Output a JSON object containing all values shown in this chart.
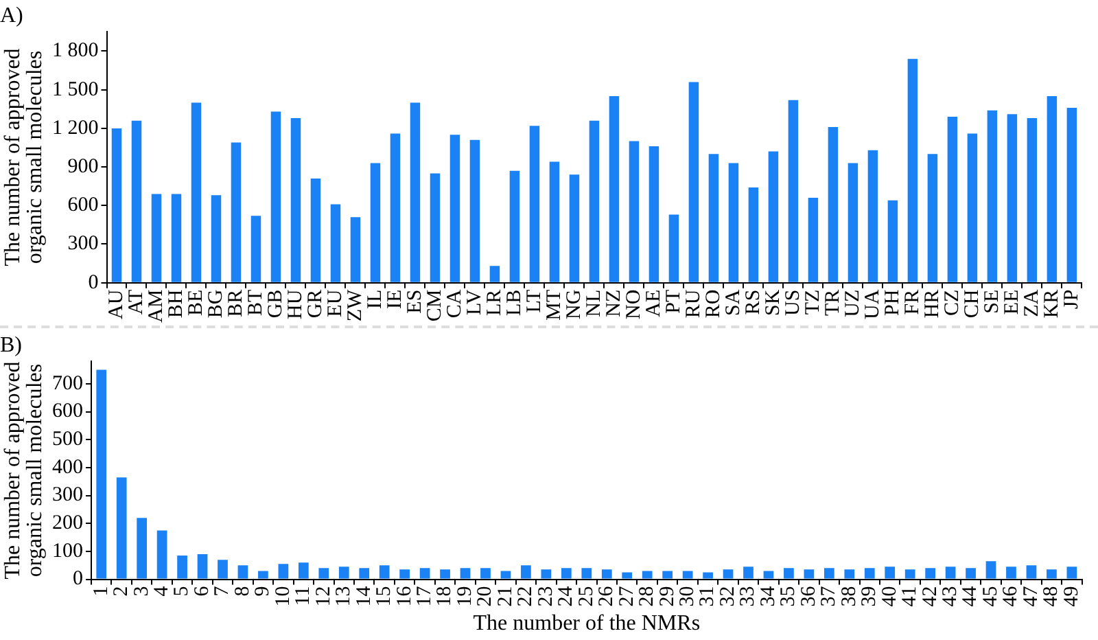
{
  "chart_data": [
    {
      "type": "bar",
      "title": "A)",
      "ylabel": "The number of approved organic small molecules",
      "categories": [
        "AU",
        "AT",
        "AM",
        "BH",
        "BE",
        "BG",
        "BR",
        "BT",
        "GB",
        "HU",
        "GR",
        "EU",
        "ZW",
        "IL",
        "IE",
        "ES",
        "CM",
        "CA",
        "LV",
        "LR",
        "LB",
        "LT",
        "MT",
        "NG",
        "NL",
        "NZ",
        "NO",
        "AE",
        "PT",
        "RU",
        "RO",
        "SA",
        "RS",
        "SK",
        "US",
        "TZ",
        "TR",
        "UZ",
        "UA",
        "PH",
        "FR",
        "HR",
        "CZ",
        "CH",
        "SE",
        "EE",
        "ZA",
        "KR",
        "JP"
      ],
      "values": [
        1200,
        1260,
        690,
        690,
        1400,
        680,
        1090,
        520,
        1330,
        1280,
        810,
        610,
        510,
        930,
        1160,
        1400,
        850,
        1150,
        1110,
        130,
        870,
        1220,
        940,
        840,
        1260,
        1450,
        1100,
        1060,
        530,
        1560,
        1000,
        930,
        740,
        1020,
        1420,
        660,
        1210,
        930,
        1030,
        640,
        1740,
        1000,
        1290,
        1160,
        1340,
        1310,
        1280,
        1450,
        1360
      ],
      "color": "#1a82f5",
      "ylim": [
        0,
        1950
      ],
      "yticks": [
        0,
        300,
        600,
        900,
        {
          "value": 1200,
          "label": "1 200"
        },
        {
          "value": 1500,
          "label": "1 500"
        },
        {
          "value": 1800,
          "label": "1 800"
        }
      ],
      "grid": false,
      "legend": false
    },
    {
      "type": "bar",
      "title": "B)",
      "ylabel": "The number of approved organic small molecules",
      "xlabel": "The number of the NMRs",
      "categories": [
        "1",
        "2",
        "3",
        "4",
        "5",
        "6",
        "7",
        "8",
        "9",
        "10",
        "11",
        "12",
        "13",
        "14",
        "15",
        "16",
        "17",
        "18",
        "19",
        "20",
        "21",
        "22",
        "23",
        "24",
        "25",
        "26",
        "27",
        "28",
        "29",
        "30",
        "31",
        "32",
        "33",
        "34",
        "35",
        "36",
        "37",
        "38",
        "39",
        "40",
        "41",
        "42",
        "43",
        "44",
        "45",
        "46",
        "47",
        "48",
        "49"
      ],
      "values": [
        750,
        365,
        220,
        175,
        85,
        90,
        70,
        50,
        30,
        55,
        60,
        40,
        45,
        40,
        50,
        35,
        40,
        35,
        40,
        40,
        30,
        50,
        35,
        40,
        40,
        35,
        25,
        30,
        30,
        30,
        25,
        35,
        45,
        30,
        40,
        35,
        40,
        35,
        40,
        45,
        35,
        40,
        45,
        40,
        65,
        45,
        50,
        35,
        45
      ],
      "color": "#1a82f5",
      "ylim": [
        0,
        780
      ],
      "yticks": [
        0,
        100,
        200,
        300,
        400,
        500,
        600,
        700
      ],
      "grid": false,
      "legend": false
    }
  ]
}
